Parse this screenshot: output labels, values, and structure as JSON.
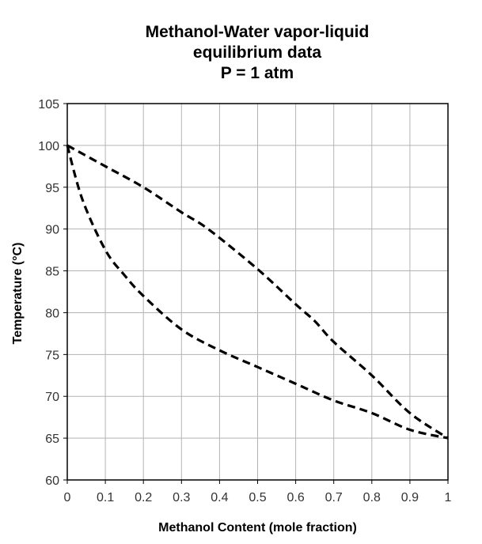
{
  "chart_data": {
    "type": "line",
    "title_lines": [
      "Methanol-Water vapor-liquid",
      "equilibrium data",
      "P = 1 atm"
    ],
    "xlabel": "Methanol Content (mole fraction)",
    "ylabel": "Temperature (°C)",
    "xlim": [
      0,
      1
    ],
    "ylim": [
      60,
      105
    ],
    "x_ticks": [
      0,
      0.1,
      0.2,
      0.3,
      0.4,
      0.5,
      0.6,
      0.7,
      0.8,
      0.9,
      1
    ],
    "x_tick_labels": [
      "0",
      "0.1",
      "0.2",
      "0.3",
      "0.4",
      "0.5",
      "0.6",
      "0.7",
      "0.8",
      "0.9",
      "1"
    ],
    "y_ticks": [
      60,
      65,
      70,
      75,
      80,
      85,
      90,
      95,
      100,
      105
    ],
    "y_tick_labels": [
      "60",
      "65",
      "70",
      "75",
      "80",
      "85",
      "90",
      "95",
      "100",
      "105"
    ],
    "grid": true,
    "line_style": "dashed",
    "line_color": "#000000",
    "series": [
      {
        "x": [
          0,
          0.04,
          0.1,
          0.15,
          0.2,
          0.3,
          0.4,
          0.5,
          0.6,
          0.7,
          0.8,
          0.9,
          1.0
        ],
        "y": [
          100,
          93.5,
          87.5,
          84.5,
          82,
          78,
          75.5,
          73.5,
          71.5,
          69.5,
          68,
          66,
          65
        ]
      },
      {
        "x": [
          0,
          0.1,
          0.2,
          0.3,
          0.37,
          0.5,
          0.6,
          0.65,
          0.7,
          0.8,
          0.9,
          1.0
        ],
        "y": [
          100,
          97.5,
          95,
          92,
          90,
          85.2,
          81,
          79,
          76.5,
          72.5,
          68,
          65
        ]
      }
    ]
  }
}
